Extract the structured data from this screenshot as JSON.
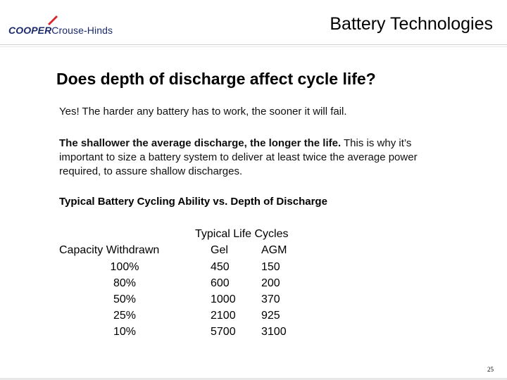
{
  "logo": {
    "brand": "COOPER",
    "division": "Crouse-Hinds",
    "color": "#1a2a6c",
    "accent": "#d7262b"
  },
  "header": {
    "title": "Battery Technologies"
  },
  "main": {
    "heading": "Does depth of discharge affect cycle life?",
    "para1": "Yes! The harder any battery has to work, the sooner it will fail.",
    "para2_bold": "The shallower the average discharge, the longer the life.",
    "para2_rest": " This is why it’s important to size a battery system to deliver at least twice the average power required, to assure shallow discharges.",
    "subheading": "Typical Battery Cycling Ability vs. Depth of Discharge"
  },
  "table": {
    "group_header": "Typical Life Cycles",
    "columns": [
      "Capacity Withdrawn",
      "Gel",
      "AGM"
    ],
    "rows": [
      [
        "100%",
        "450",
        "150"
      ],
      [
        "80%",
        "600",
        "200"
      ],
      [
        "50%",
        "1000",
        "370"
      ],
      [
        "25%",
        "2100",
        "925"
      ],
      [
        "10%",
        "5700",
        "3100"
      ]
    ]
  },
  "footer": {
    "page_number": "25"
  }
}
